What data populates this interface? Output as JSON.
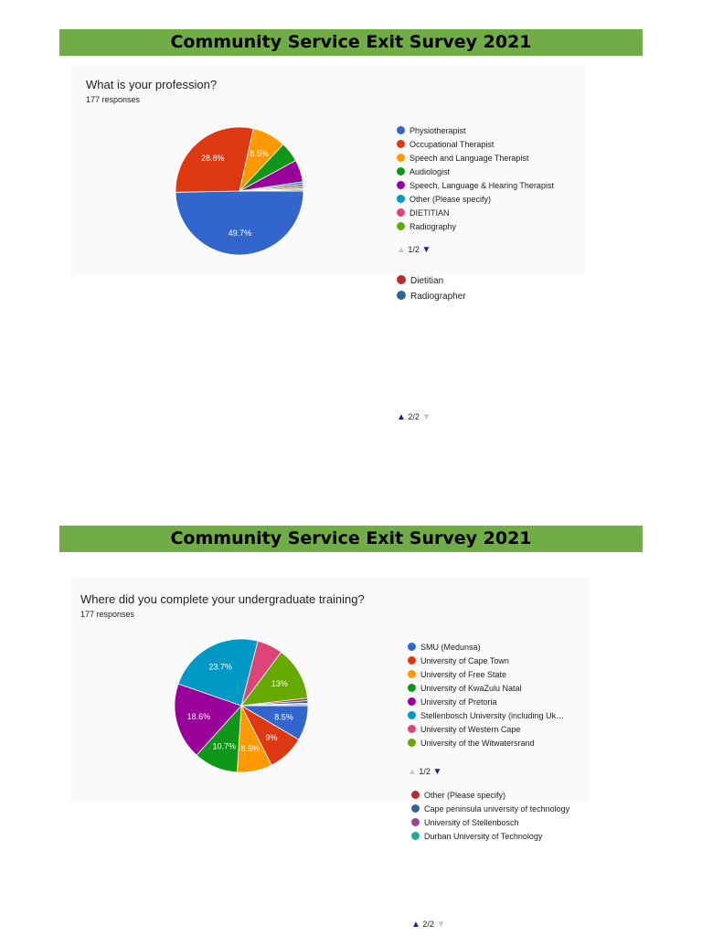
{
  "charts": [
    {
      "banner": "Community Service Exit Survey 2021",
      "question": "What is your profession?",
      "responses": "177 responses",
      "pager_page1": "1/2",
      "pager_page2": "2/2"
    },
    {
      "banner": "Community Service Exit Survey 2021",
      "question": "Where did you complete your undergraduate training?",
      "responses": "177 responses",
      "pager_page1": "1/2",
      "pager_page2": "2/2"
    }
  ],
  "icons": {
    "pager_up": "triangle-up-icon",
    "pager_down": "triangle-down-icon"
  },
  "chart_data": [
    {
      "type": "pie",
      "title": "What is your profession?",
      "slices": [
        {
          "label": "Physiotherapist",
          "value": 49.7,
          "value_label": "49.7%",
          "color": "#3366cc"
        },
        {
          "label": "Occupational Therapist",
          "value": 28.8,
          "value_label": "28.8%",
          "color": "#dc3912"
        },
        {
          "label": "Speech and Language Therapist",
          "value": 8.5,
          "value_label": "8.5%",
          "color": "#ff9900"
        },
        {
          "label": "Audiologist",
          "value": 5.1,
          "value_label": "",
          "color": "#109618"
        },
        {
          "label": "Speech, Language & Hearing Therapist",
          "value": 5.6,
          "value_label": "",
          "color": "#990099"
        },
        {
          "label": "Other (Please specify)",
          "value": 0.6,
          "value_label": "",
          "color": "#0099c6"
        },
        {
          "label": "DIETITIAN",
          "value": 0.6,
          "value_label": "",
          "color": "#dd4477"
        },
        {
          "label": "Radiography",
          "value": 0.5,
          "value_label": "",
          "color": "#66aa00"
        },
        {
          "label": "Dietitian",
          "value": 0.3,
          "value_label": "",
          "color": "#b82e2e"
        },
        {
          "label": "Radiographer",
          "value": 0.3,
          "value_label": "",
          "color": "#316395"
        }
      ],
      "legend_page1_count": 8,
      "legend_page2_start": 8
    },
    {
      "type": "pie",
      "title": "Where did you complete your undergraduate training?",
      "slices": [
        {
          "label": "SMU (Medunsa)",
          "value": 8.5,
          "value_label": "8.5%",
          "color": "#3366cc"
        },
        {
          "label": "University of Cape Town",
          "value": 9,
          "value_label": "9%",
          "color": "#dc3912"
        },
        {
          "label": "University of Free State",
          "value": 8.5,
          "value_label": "8.5%",
          "color": "#ff9900"
        },
        {
          "label": "University of KwaZulu Natal",
          "value": 10.7,
          "value_label": "10.7%",
          "color": "#109618"
        },
        {
          "label": "University of Pretoria",
          "value": 18.6,
          "value_label": "18.6%",
          "color": "#990099"
        },
        {
          "label": "Stellenbosch University (including Uk…",
          "value": 23.7,
          "value_label": "23.7%",
          "color": "#0099c6"
        },
        {
          "label": "University of Western Cape",
          "value": 6.2,
          "value_label": "",
          "color": "#dd4477"
        },
        {
          "label": "University of the Witwatersrand",
          "value": 13,
          "value_label": "13%",
          "color": "#66aa00"
        },
        {
          "label": "Other (Please specify)",
          "value": 0.6,
          "value_label": "",
          "color": "#b82e2e"
        },
        {
          "label": "Cape peninsula university of technology",
          "value": 0.6,
          "value_label": "",
          "color": "#316395"
        },
        {
          "label": "University of Stellenbosch",
          "value": 0.3,
          "value_label": "",
          "color": "#994499"
        },
        {
          "label": "Durban University of Technology",
          "value": 0.3,
          "value_label": "",
          "color": "#22aa99"
        }
      ],
      "legend_page1_count": 8,
      "legend_page2_start": 8
    }
  ]
}
